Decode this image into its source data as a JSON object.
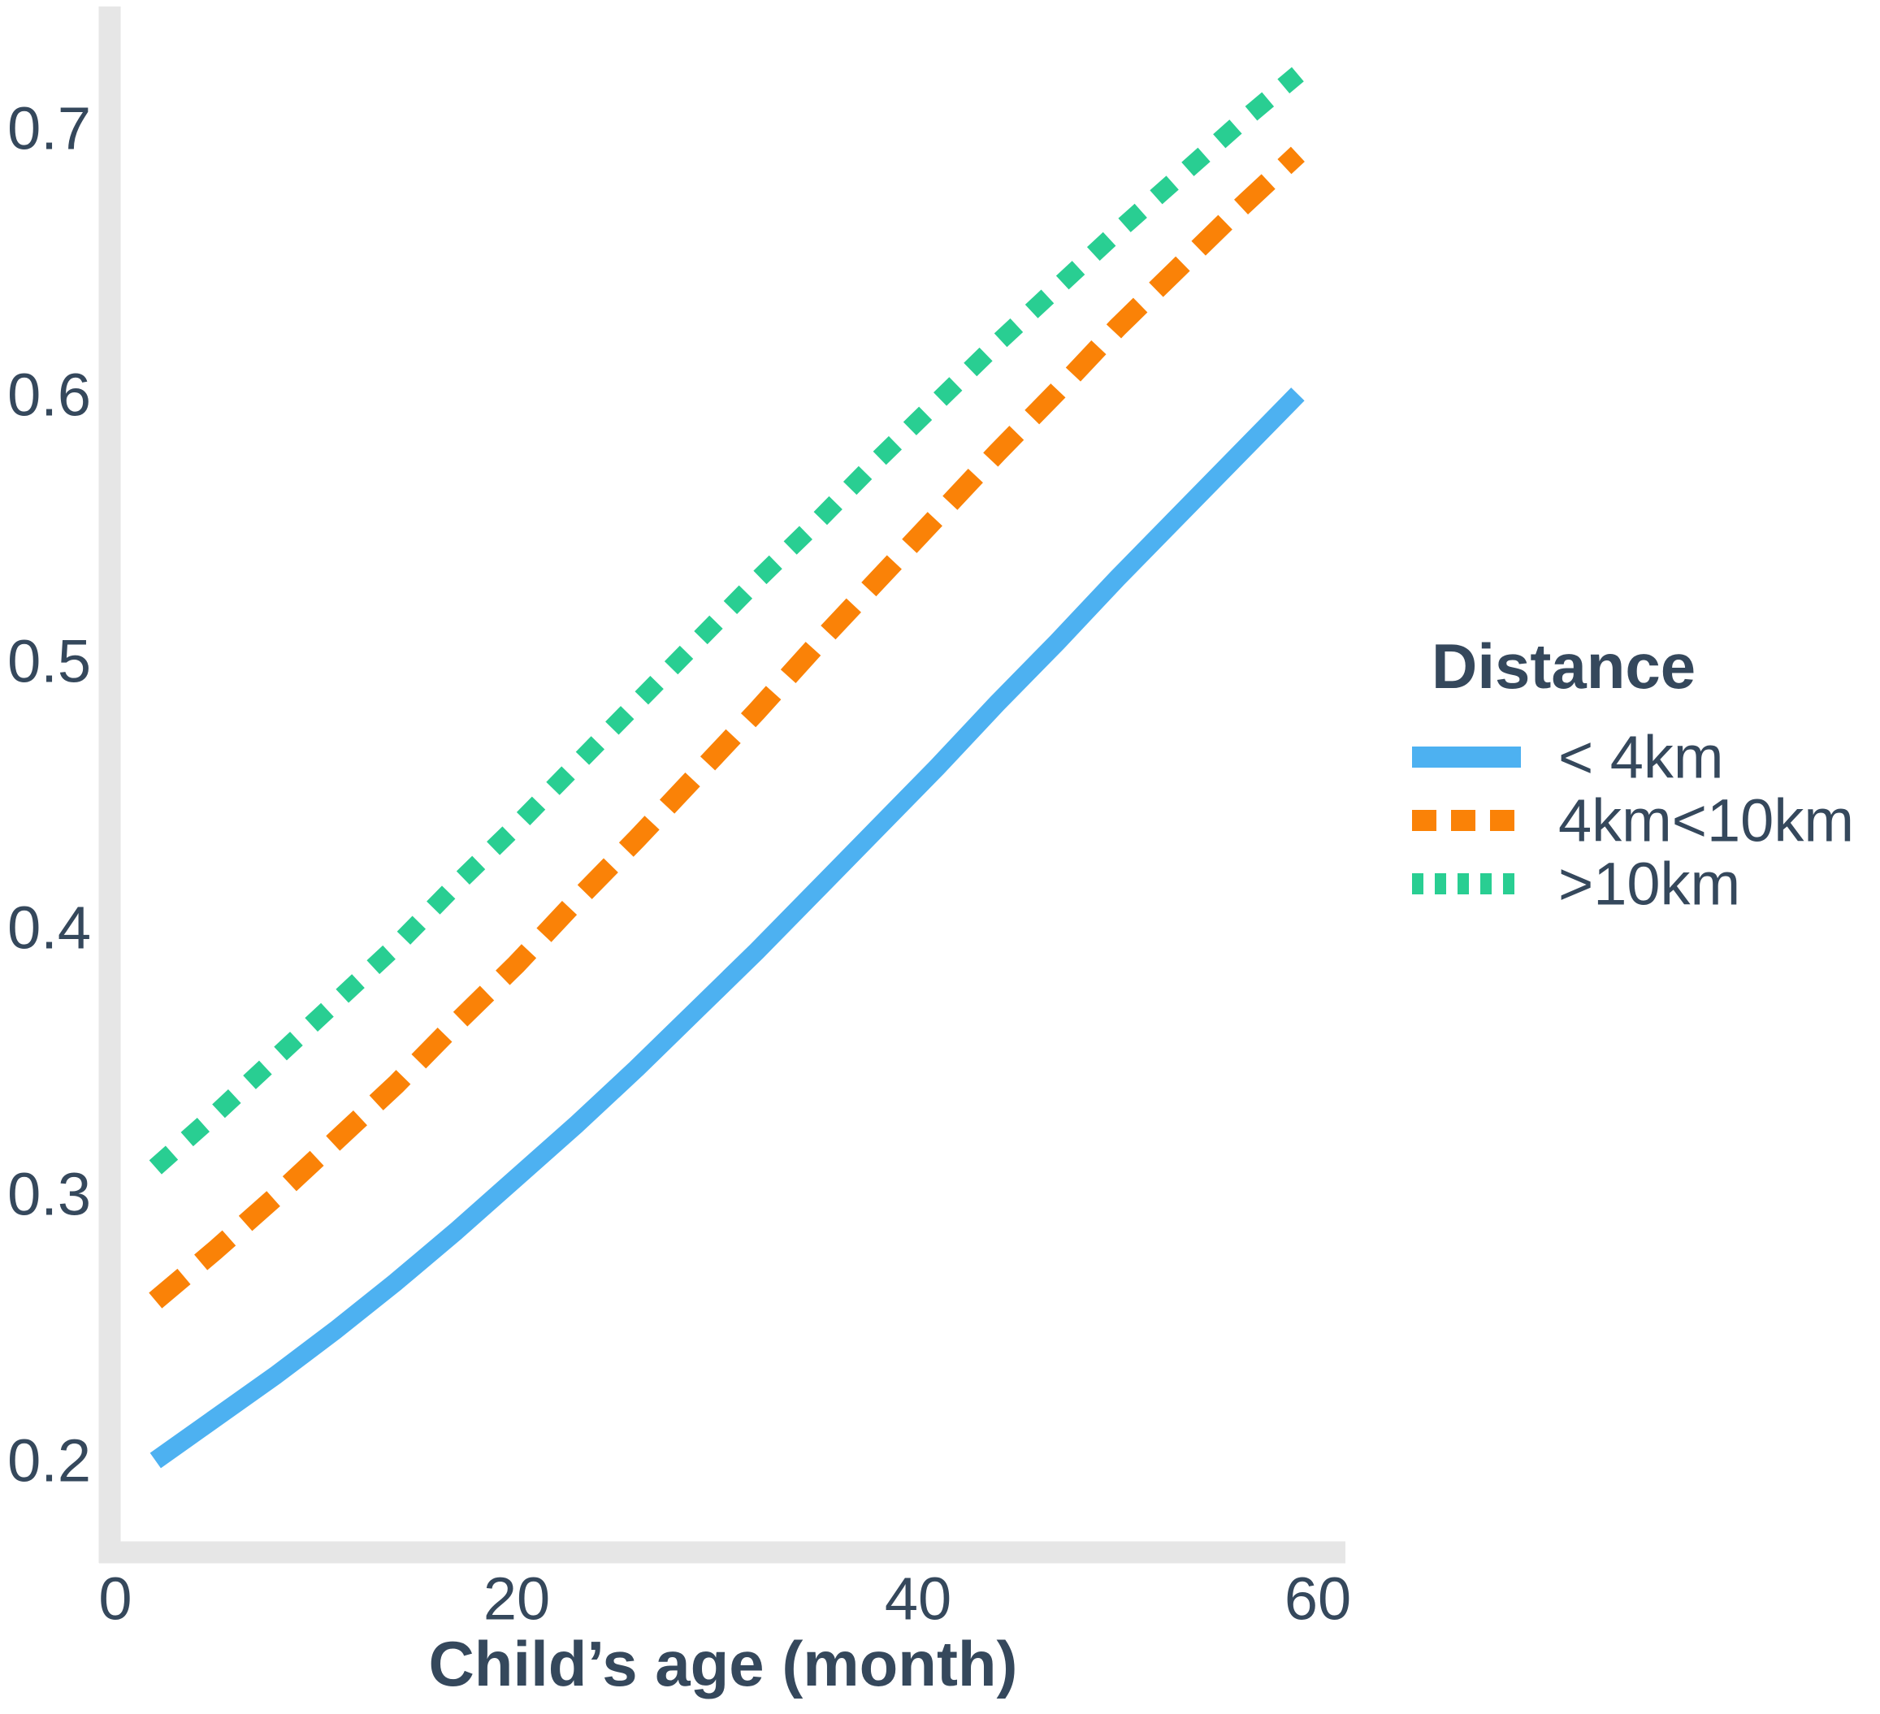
{
  "chart_data": {
    "type": "line",
    "title": "",
    "xlabel": "Child’s age (month)",
    "ylabel": "",
    "x_ticks": [
      "0",
      "20",
      "40",
      "60"
    ],
    "x_tick_values": [
      0,
      20,
      40,
      60
    ],
    "y_ticks": [
      "0.2",
      "0.3",
      "0.4",
      "0.5",
      "0.6",
      "0.7"
    ],
    "y_tick_values": [
      0.2,
      0.3,
      0.4,
      0.5,
      0.6,
      0.7
    ],
    "xlim": [
      0,
      62
    ],
    "ylim": [
      0.18,
      0.74
    ],
    "grid": "off",
    "axis_style": "dashed light gray axis lines, no tick marks",
    "legend": {
      "title": "Distance",
      "position": "right"
    },
    "x_shared": [
      2,
      5,
      8,
      11,
      14,
      17,
      20,
      23,
      26,
      29,
      32,
      35,
      38,
      41,
      44,
      47,
      50,
      53,
      56,
      59
    ],
    "series": [
      {
        "name": "< 4km",
        "style": "solid",
        "color": "#4DB1F1",
        "x": [
          2,
          5,
          8,
          11,
          14,
          17,
          20,
          23,
          26,
          29,
          32,
          35,
          38,
          41,
          44,
          47,
          50,
          53,
          56,
          59
        ],
        "y": [
          0.2,
          0.216,
          0.232,
          0.249,
          0.267,
          0.286,
          0.306,
          0.326,
          0.347,
          0.369,
          0.391,
          0.414,
          0.437,
          0.46,
          0.484,
          0.507,
          0.531,
          0.554,
          0.577,
          0.6
        ]
      },
      {
        "name": "4km<10km",
        "style": "dashed",
        "color": "#FA8207",
        "x": [
          2,
          5,
          8,
          11,
          14,
          17,
          20,
          23,
          26,
          29,
          32,
          35,
          38,
          41,
          44,
          47,
          50,
          53,
          56,
          59
        ],
        "y": [
          0.26,
          0.279,
          0.299,
          0.32,
          0.341,
          0.364,
          0.386,
          0.41,
          0.433,
          0.457,
          0.481,
          0.506,
          0.53,
          0.554,
          0.578,
          0.601,
          0.625,
          0.647,
          0.669,
          0.69
        ]
      },
      {
        "name": ">10km",
        "style": "dotted",
        "color": "#29CE92",
        "x": [
          2,
          5,
          8,
          11,
          14,
          17,
          20,
          23,
          26,
          29,
          32,
          35,
          38,
          41,
          44,
          47,
          50,
          53,
          56,
          59
        ],
        "y": [
          0.31,
          0.33,
          0.351,
          0.372,
          0.393,
          0.416,
          0.438,
          0.461,
          0.484,
          0.507,
          0.53,
          0.552,
          0.575,
          0.597,
          0.619,
          0.64,
          0.661,
          0.681,
          0.701,
          0.72
        ]
      }
    ],
    "colors": {
      "text": "#35485C",
      "axis": "#E6E6E6",
      "background": "#FFFFFF"
    }
  }
}
